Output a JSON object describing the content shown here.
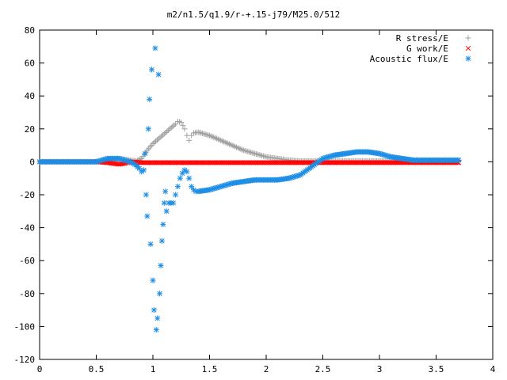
{
  "chart_data": {
    "type": "scatter",
    "title": "m2/n1.5/q1.9/r-+.15-j79/M25.0/512",
    "xlabel": "",
    "ylabel": "",
    "xlim": [
      0,
      4
    ],
    "ylim": [
      -120,
      80
    ],
    "x_ticks": [
      "0",
      "0.5",
      "1",
      "1.5",
      "2",
      "2.5",
      "3",
      "3.5",
      "4"
    ],
    "y_ticks": [
      "80",
      "60",
      "40",
      "20",
      "0",
      "-20",
      "-40",
      "-60",
      "-80",
      "-100",
      "-120"
    ],
    "grid": false,
    "legend_position": "top-right",
    "series": [
      {
        "name": "R stress/E",
        "marker": "plus",
        "color": "#a0a0a0",
        "x": [
          0.55,
          0.6,
          0.65,
          0.7,
          0.75,
          0.8,
          0.85,
          0.9,
          0.95,
          1.0,
          1.05,
          1.1,
          1.15,
          1.2,
          1.22,
          1.25,
          1.28,
          1.3,
          1.32,
          1.34,
          1.36,
          1.4,
          1.45,
          1.5,
          1.6,
          1.7,
          1.8,
          1.9,
          2.0,
          2.1,
          2.2,
          2.3,
          2.4,
          2.5,
          2.6,
          2.7,
          2.8,
          2.9,
          3.0,
          3.1,
          3.2,
          3.3,
          3.4,
          3.5,
          3.6,
          3.7
        ],
        "y": [
          0.5,
          1,
          1.5,
          2,
          1.5,
          1,
          0.5,
          2,
          7,
          11,
          14,
          17,
          20,
          23,
          24.5,
          24,
          20,
          16,
          13,
          16,
          17.5,
          18,
          17,
          16,
          13,
          10,
          7,
          5,
          3,
          2,
          1,
          0.5,
          0.5,
          0.5,
          0.5,
          0.5,
          0.5,
          0.5,
          0.5,
          0.5,
          0.5,
          0.5,
          0.5,
          0.5,
          0.5,
          0.5
        ]
      },
      {
        "name": "G work/E",
        "marker": "cross",
        "color": "#ff0000",
        "x": [
          0.0,
          0.2,
          0.4,
          0.5,
          0.6,
          0.65,
          0.7,
          0.75,
          0.8,
          0.9,
          1.0,
          1.2,
          1.4,
          1.6,
          1.8,
          2.0,
          2.2,
          2.4,
          2.6,
          2.8,
          3.0,
          3.2,
          3.4,
          3.6,
          3.7
        ],
        "y": [
          0,
          0,
          0,
          0,
          -0.5,
          -1,
          -1.5,
          -1,
          0,
          -0.5,
          -0.5,
          -0.5,
          -0.5,
          -0.5,
          -0.5,
          -0.5,
          -0.5,
          -0.5,
          -0.5,
          -0.5,
          -0.5,
          -0.5,
          -0.5,
          -0.5,
          -0.5
        ]
      },
      {
        "name": "Acoustic flux/E",
        "marker": "asterisk",
        "color": "#1e8ee5",
        "x": [
          0.0,
          0.1,
          0.2,
          0.3,
          0.4,
          0.5,
          0.55,
          0.6,
          0.65,
          0.7,
          0.75,
          0.8,
          0.85,
          0.88,
          0.9,
          0.92,
          0.93,
          0.94,
          0.95,
          0.96,
          0.97,
          0.98,
          0.99,
          1.0,
          1.01,
          1.02,
          1.03,
          1.04,
          1.05,
          1.06,
          1.07,
          1.08,
          1.09,
          1.1,
          1.11,
          1.12,
          1.14,
          1.16,
          1.18,
          1.2,
          1.22,
          1.24,
          1.26,
          1.28,
          1.3,
          1.32,
          1.34,
          1.36,
          1.38,
          1.4,
          1.5,
          1.6,
          1.7,
          1.8,
          1.9,
          2.0,
          2.1,
          2.2,
          2.3,
          2.4,
          2.5,
          2.6,
          2.7,
          2.8,
          2.9,
          3.0,
          3.1,
          3.2,
          3.3,
          3.4,
          3.5,
          3.6,
          3.7
        ],
        "y": [
          0,
          0,
          0,
          0,
          0,
          0,
          1,
          2,
          2,
          2,
          1,
          0,
          -2,
          -4,
          -6,
          -5,
          5,
          -20,
          -33,
          20,
          38,
          -50,
          56,
          -72,
          -90,
          69,
          -102,
          -95,
          53,
          -80,
          -63,
          -48,
          -38,
          -25,
          -18,
          -30,
          -25,
          -25,
          -25,
          -20,
          -15,
          -10,
          -7,
          -5,
          -6,
          -10,
          -15,
          -17,
          -18,
          -18,
          -17,
          -15,
          -13,
          -12,
          -11,
          -11,
          -11,
          -10,
          -8,
          -3,
          2,
          4,
          5,
          6,
          6,
          5,
          3,
          2,
          1,
          1,
          1,
          1,
          1
        ]
      }
    ]
  }
}
